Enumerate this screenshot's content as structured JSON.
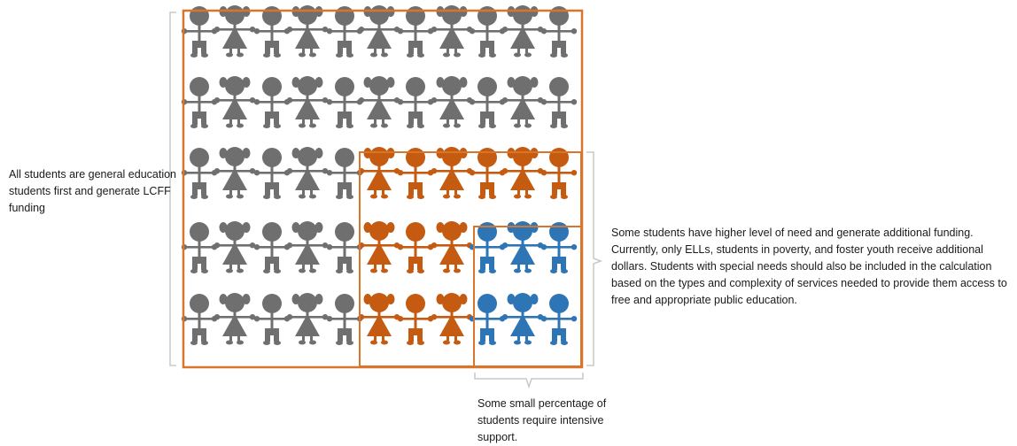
{
  "captions": {
    "all_students": "All students are general education students first and generate LCFF funding",
    "higher_need": "Some students have higher level of need and generate additional funding. Currently, only ELLs, students in poverty, and foster youth receive additional dollars. Students with special needs should also be included in the calculation based on the types and complexity of services needed to provide them access to free and appropriate public education.",
    "intensive": "Some small percentage of students require intensive support."
  },
  "colors": {
    "general": "#6f6f6f",
    "higher_need": "#c55a11",
    "intensive": "#2e75b6",
    "outer_border": "#d9742b",
    "bracket": "#c8c8c8"
  },
  "grid": {
    "rows": 5,
    "columns": 11,
    "higher_need_start_row": 2,
    "higher_need_start_col": 5,
    "intensive_start_row": 3,
    "intensive_start_col": 8,
    "figure_pattern_by_column": [
      "boy",
      "girl",
      "boy",
      "girl",
      "boy",
      "girl",
      "boy",
      "girl",
      "boy",
      "girl",
      "boy"
    ]
  }
}
